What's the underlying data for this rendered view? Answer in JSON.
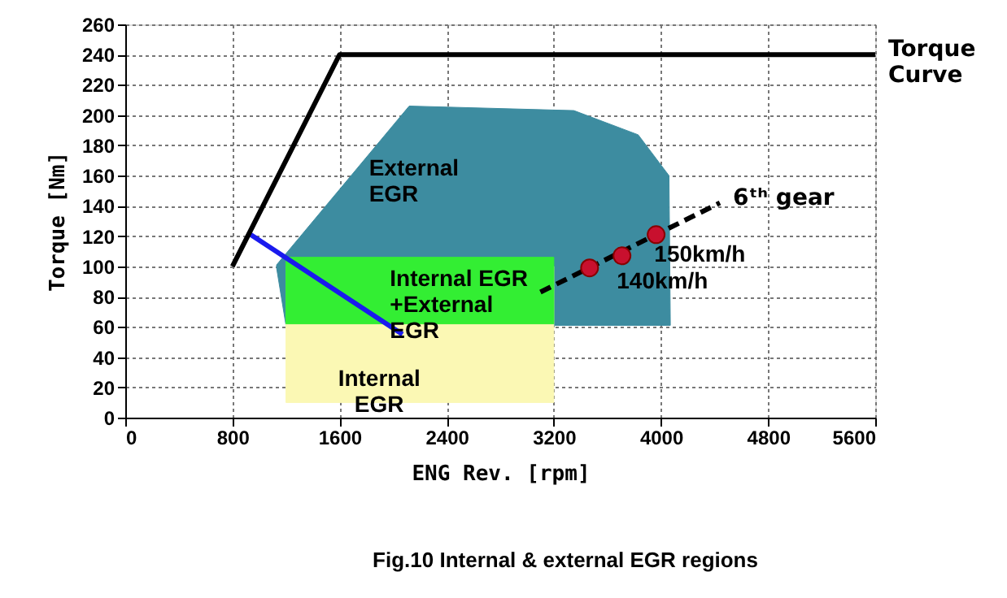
{
  "chart_data": {
    "type": "line",
    "xlabel": "ENG Rev. [rpm]",
    "ylabel": "Torque [Nm]",
    "xlim": [
      0,
      5600
    ],
    "xticks": [
      0,
      800,
      1600,
      2400,
      3200,
      4000,
      4800,
      5600
    ],
    "ylim": [
      0,
      260
    ],
    "yticks": [
      0,
      20,
      40,
      60,
      80,
      100,
      120,
      140,
      160,
      180,
      200,
      220,
      240,
      260
    ],
    "grid": true,
    "series": [
      {
        "type": "area",
        "color": "#3d8ca0",
        "x": [
          1130,
          2120,
          3350,
          3830,
          4060,
          4070,
          1200,
          1130
        ],
        "values": [
          101,
          206,
          203,
          187,
          160,
          61,
          61,
          99
        ]
      },
      {
        "type": "area",
        "name": "Internal\nEGR",
        "color": "#fbf8b4",
        "x": [
          1200,
          1200,
          3200,
          3200
        ],
        "values": [
          10,
          100,
          100,
          10
        ]
      },
      {
        "type": "area",
        "color": "#33ee33",
        "x": [
          1200,
          1200,
          3200,
          3200
        ],
        "values": [
          62,
          106,
          106,
          62
        ]
      },
      {
        "type": "line",
        "color": "#1a1aee",
        "x": [
          920,
          2070
        ],
        "values": [
          122,
          55
        ],
        "line_style": "solid"
      },
      {
        "type": "line",
        "name": "Torque\nCurve",
        "color": "#000000",
        "x": [
          800,
          1600,
          5600
        ],
        "values": [
          100,
          240,
          240
        ],
        "line_style": "solid"
      },
      {
        "type": "line",
        "name": "6ᵗʰ gear",
        "color": "#000000",
        "x": [
          3100,
          4440
        ],
        "values": [
          83,
          142
        ],
        "line_style": "dashed"
      },
      {
        "type": "scatter",
        "color": "#c8102e",
        "marker": "circle",
        "x": [
          3467,
          3709,
          3964
        ],
        "values": [
          99,
          107,
          121
        ]
      }
    ],
    "annotations": [
      {
        "text": "External\nEGR",
        "x": 1820,
        "y": 172
      },
      {
        "text": "Internal EGR\n+External\nEGR",
        "x": 1976,
        "y": 99
      },
      {
        "text": "150km/h",
        "x": 3950,
        "y": 115
      },
      {
        "text": "140km/h",
        "x": 3670,
        "y": 97
      },
      "Fig.10 Internal & external EGR regions"
    ]
  }
}
